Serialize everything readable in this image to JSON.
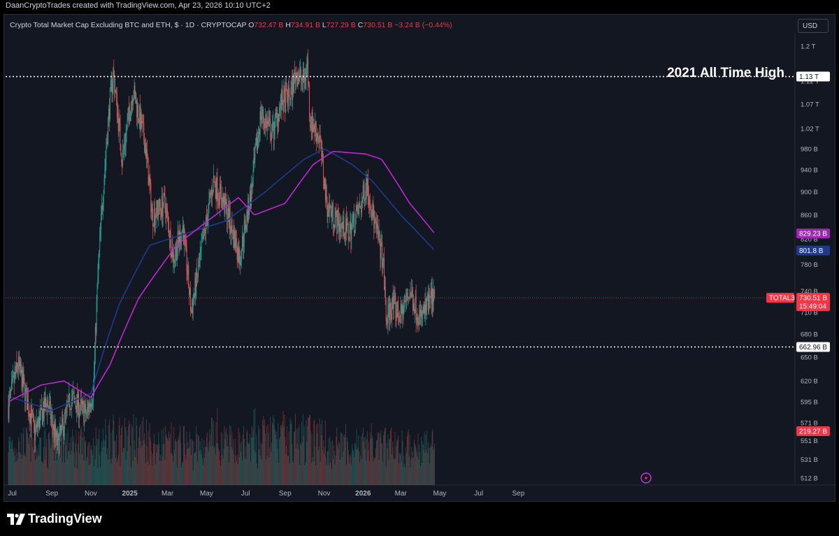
{
  "header": {
    "text": "DaanCryptoTrades created with TradingView.com, Apr 23, 2026 10:10 UTC+2"
  },
  "legend": {
    "title": "Crypto Total Market Cap Excluding BTC and ETH, $ · 1D · CRYPTOCAP",
    "open_label": "O",
    "open": "732.47 B",
    "high_label": "H",
    "high": "734.91 B",
    "low_label": "L",
    "low": "727.29 B",
    "close_label": "C",
    "close": "730.51 B",
    "change": "−3.24 B (−0.44%)"
  },
  "currency_button": "USD",
  "logo_text": "TradingView",
  "annotations": {
    "ath_text": "2021 All Time High"
  },
  "colors": {
    "background": "#131722",
    "up": "#26a69a",
    "down": "#ef5350",
    "ma_fast": "#1e3a8a",
    "ma_slow": "#c026d3",
    "price_line": "#f23645",
    "level_line": "#ffffff"
  },
  "price_axis": {
    "ticks": [
      "1.2 T",
      "1.12 T",
      "1.07 T",
      "1.02 T",
      "980 B",
      "940 B",
      "900 B",
      "860 B",
      "820 B",
      "780 B",
      "740 B",
      "710 B",
      "680 B",
      "650 B",
      "620 B",
      "595 B",
      "571 B",
      "551 B",
      "531 B",
      "512 B"
    ],
    "labels": {
      "ath": "1.13 T",
      "ma_slow": "829.23 B",
      "ma_fast": "801.8 B",
      "symbol": "TOTAL3",
      "last_price": "730.51 B",
      "countdown": "15:49:04",
      "support": "662.96 B",
      "volume": "219.27 B"
    }
  },
  "time_axis": {
    "labels": [
      "Jul",
      "Sep",
      "Nov",
      "2025",
      "Mar",
      "May",
      "Jul",
      "Sep",
      "Nov",
      "2026",
      "Mar",
      "May",
      "Jul",
      "Sep"
    ]
  },
  "chart_data": {
    "type": "candlestick",
    "symbol": "TOTAL3",
    "scale": "log",
    "ylim_billions": [
      505,
      1230
    ],
    "levels": [
      {
        "label": "2021 All Time High",
        "value": "1.13 T"
      },
      {
        "value": "662.96 B"
      }
    ],
    "price_path_billions": [
      [
        "2024-06-25",
        590
      ],
      [
        "2024-07-10",
        640
      ],
      [
        "2024-08-05",
        560
      ],
      [
        "2024-08-25",
        595
      ],
      [
        "2024-09-10",
        545
      ],
      [
        "2024-10-01",
        600
      ],
      [
        "2024-10-25",
        580
      ],
      [
        "2024-11-05",
        610
      ],
      [
        "2024-11-12",
        760
      ],
      [
        "2024-11-20",
        900
      ],
      [
        "2024-12-01",
        1080
      ],
      [
        "2024-12-06",
        1140
      ],
      [
        "2024-12-20",
        960
      ],
      [
        "2025-01-06",
        1100
      ],
      [
        "2025-01-25",
        990
      ],
      [
        "2025-02-05",
        860
      ],
      [
        "2025-02-25",
        880
      ],
      [
        "2025-03-10",
        790
      ],
      [
        "2025-03-25",
        840
      ],
      [
        "2025-04-07",
        710
      ],
      [
        "2025-04-20",
        780
      ],
      [
        "2025-05-12",
        920
      ],
      [
        "2025-06-01",
        870
      ],
      [
        "2025-06-22",
        790
      ],
      [
        "2025-07-10",
        900
      ],
      [
        "2025-07-25",
        1050
      ],
      [
        "2025-08-12",
        1010
      ],
      [
        "2025-08-25",
        1070
      ],
      [
        "2025-09-10",
        1090
      ],
      [
        "2025-09-18",
        1140
      ],
      [
        "2025-09-30",
        1120
      ],
      [
        "2025-10-06",
        1160
      ],
      [
        "2025-10-10",
        1040
      ],
      [
        "2025-10-25",
        1000
      ],
      [
        "2025-11-05",
        880
      ],
      [
        "2025-11-20",
        850
      ],
      [
        "2025-12-10",
        830
      ],
      [
        "2025-12-30",
        880
      ],
      [
        "2026-01-06",
        920
      ],
      [
        "2026-01-20",
        840
      ],
      [
        "2026-02-01",
        790
      ],
      [
        "2026-02-06",
        700
      ],
      [
        "2026-02-15",
        720
      ],
      [
        "2026-03-01",
        705
      ],
      [
        "2026-03-15",
        740
      ],
      [
        "2026-04-01",
        700
      ],
      [
        "2026-04-15",
        725
      ],
      [
        "2026-04-23",
        730.51
      ]
    ],
    "moving_averages": [
      {
        "color": "#1e3a8a",
        "last_value": "801.8 B",
        "path_billions": [
          [
            "2024-07-01",
            600
          ],
          [
            "2024-09-01",
            585
          ],
          [
            "2024-11-01",
            605
          ],
          [
            "2024-12-15",
            720
          ],
          [
            "2025-02-01",
            810
          ],
          [
            "2025-04-01",
            830
          ],
          [
            "2025-06-01",
            850
          ],
          [
            "2025-08-01",
            900
          ],
          [
            "2025-10-01",
            960
          ],
          [
            "2025-11-01",
            980
          ],
          [
            "2025-12-15",
            950
          ],
          [
            "2026-01-15",
            920
          ],
          [
            "2026-03-01",
            860
          ],
          [
            "2026-04-23",
            801.8
          ]
        ]
      },
      {
        "color": "#c026d3",
        "last_value": "829.23 B",
        "path_billions": [
          [
            "2024-06-25",
            595
          ],
          [
            "2024-08-15",
            615
          ],
          [
            "2024-09-20",
            620
          ],
          [
            "2024-11-01",
            600
          ],
          [
            "2024-12-01",
            640
          ],
          [
            "2025-01-15",
            730
          ],
          [
            "2025-03-15",
            810
          ],
          [
            "2025-05-15",
            860
          ],
          [
            "2025-06-20",
            890
          ],
          [
            "2025-07-15",
            860
          ],
          [
            "2025-09-01",
            880
          ],
          [
            "2025-10-15",
            950
          ],
          [
            "2025-11-15",
            975
          ],
          [
            "2026-01-05",
            970
          ],
          [
            "2026-01-30",
            960
          ],
          [
            "2026-03-15",
            880
          ],
          [
            "2026-04-23",
            829.23
          ]
        ]
      }
    ],
    "last_price": "730.51 B",
    "last_volume": "219.27 B"
  }
}
